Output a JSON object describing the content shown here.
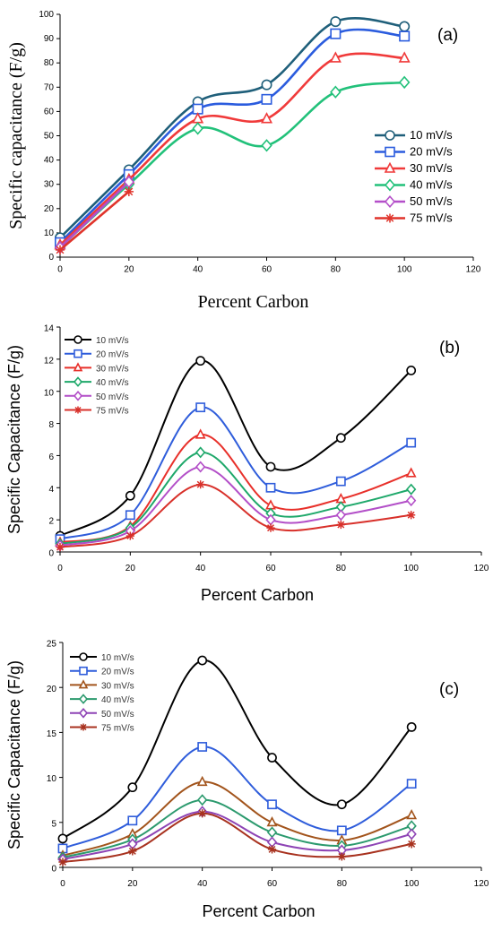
{
  "chart_data": [
    {
      "panel": "(a)",
      "type": "line",
      "xlabel": "Percent Carbon",
      "ylabel": "Specific capacitance (F/g)",
      "xlim": [
        0,
        120
      ],
      "ylim": [
        0,
        100
      ],
      "xticks": [
        0,
        20,
        40,
        60,
        80,
        100,
        120
      ],
      "yticks": [
        0,
        10,
        20,
        30,
        40,
        50,
        60,
        70,
        80,
        90,
        100
      ],
      "grid": false,
      "legend_position": "right-middle",
      "series": [
        {
          "name": "10 mV/s",
          "color": "#1f5f7a",
          "marker": "circle",
          "x": [
            0,
            20,
            40,
            60,
            80,
            100
          ],
          "y": [
            8,
            36,
            64,
            71,
            97,
            95
          ]
        },
        {
          "name": "20 mV/s",
          "color": "#2b5cde",
          "marker": "square",
          "x": [
            0,
            20,
            40,
            60,
            80,
            100
          ],
          "y": [
            6,
            34,
            61,
            65,
            92,
            91
          ]
        },
        {
          "name": "30 mV/s",
          "color": "#f03a3a",
          "marker": "triangle",
          "x": [
            0,
            20,
            40,
            60,
            80,
            100
          ],
          "y": [
            5,
            32,
            57,
            57,
            82,
            82
          ]
        },
        {
          "name": "40 mV/s",
          "color": "#22c17a",
          "marker": "diamond",
          "x": [
            0,
            20,
            40,
            60,
            80,
            100
          ],
          "y": [
            4,
            30,
            53,
            46,
            68,
            72
          ]
        },
        {
          "name": "50 mV/s",
          "color": "#b44fc9",
          "marker": "diamond",
          "x": [
            0,
            20
          ],
          "y": [
            4,
            31
          ]
        },
        {
          "name": "75 mV/s",
          "color": "#e0342b",
          "marker": "star",
          "x": [
            0,
            20
          ],
          "y": [
            3,
            27
          ]
        }
      ]
    },
    {
      "panel": "(b)",
      "type": "line",
      "xlabel": "Percent Carbon",
      "ylabel": "Specific Capacitance (F/g)",
      "xlim": [
        0,
        120
      ],
      "ylim": [
        0,
        14
      ],
      "xticks": [
        0,
        20,
        40,
        60,
        80,
        100,
        120
      ],
      "yticks": [
        0,
        2,
        4,
        6,
        8,
        10,
        12,
        14
      ],
      "grid": false,
      "legend_position": "top-left",
      "series": [
        {
          "name": "10 mV/s",
          "color": "#000000",
          "marker": "circle",
          "x": [
            0,
            20,
            40,
            60,
            80,
            100
          ],
          "y": [
            1.0,
            3.5,
            11.9,
            5.3,
            7.1,
            11.3
          ]
        },
        {
          "name": "20 mV/s",
          "color": "#2f5ddb",
          "marker": "square",
          "x": [
            0,
            20,
            40,
            60,
            80,
            100
          ],
          "y": [
            0.8,
            2.3,
            9.0,
            4.0,
            4.4,
            6.8
          ]
        },
        {
          "name": "30 mV/s",
          "color": "#e8302a",
          "marker": "triangle",
          "x": [
            0,
            20,
            40,
            60,
            80,
            100
          ],
          "y": [
            0.6,
            1.6,
            7.3,
            2.9,
            3.3,
            4.9
          ]
        },
        {
          "name": "40 mV/s",
          "color": "#1ea86a",
          "marker": "diamond",
          "x": [
            0,
            20,
            40,
            60,
            80,
            100
          ],
          "y": [
            0.5,
            1.5,
            6.2,
            2.4,
            2.8,
            3.9
          ]
        },
        {
          "name": "50 mV/s",
          "color": "#b34fc8",
          "marker": "diamond",
          "x": [
            0,
            20,
            40,
            60,
            80,
            100
          ],
          "y": [
            0.4,
            1.3,
            5.3,
            2.0,
            2.3,
            3.2
          ]
        },
        {
          "name": "75 mV/s",
          "color": "#d8302a",
          "marker": "star",
          "x": [
            0,
            20,
            40,
            60,
            80,
            100
          ],
          "y": [
            0.3,
            1.0,
            4.2,
            1.5,
            1.7,
            2.3
          ]
        }
      ]
    },
    {
      "panel": "(c)",
      "type": "line",
      "xlabel": "Percent Carbon",
      "ylabel": "Specific Capacitance (F/g)",
      "xlim": [
        0,
        120
      ],
      "ylim": [
        0,
        25
      ],
      "xticks": [
        0,
        20,
        40,
        60,
        80,
        100,
        120
      ],
      "yticks": [
        0,
        5,
        10,
        15,
        20,
        25
      ],
      "grid": false,
      "legend_position": "top-left",
      "series": [
        {
          "name": "10 mV/s",
          "color": "#000000",
          "marker": "circle",
          "x": [
            0,
            20,
            40,
            60,
            80,
            100
          ],
          "y": [
            3.2,
            8.9,
            23.0,
            12.2,
            7.0,
            15.6
          ]
        },
        {
          "name": "20 mV/s",
          "color": "#2f5ddb",
          "marker": "square",
          "x": [
            0,
            20,
            40,
            60,
            80,
            100
          ],
          "y": [
            2.1,
            5.2,
            13.4,
            7.0,
            4.1,
            9.3
          ]
        },
        {
          "name": "30 mV/s",
          "color": "#a2541c",
          "marker": "triangle",
          "x": [
            0,
            20,
            40,
            60,
            80,
            100
          ],
          "y": [
            1.3,
            3.7,
            9.5,
            5.0,
            3.0,
            5.8
          ]
        },
        {
          "name": "40 mV/s",
          "color": "#2c9a6e",
          "marker": "diamond",
          "x": [
            0,
            20,
            40,
            60,
            80,
            100
          ],
          "y": [
            1.1,
            3.1,
            7.5,
            3.9,
            2.4,
            4.6
          ]
        },
        {
          "name": "50 mV/s",
          "color": "#8e44b5",
          "marker": "diamond",
          "x": [
            0,
            20,
            40,
            60,
            80,
            100
          ],
          "y": [
            0.9,
            2.6,
            6.2,
            2.8,
            1.9,
            3.7
          ]
        },
        {
          "name": "75 mV/s",
          "color": "#a8321f",
          "marker": "star",
          "x": [
            0,
            20,
            40,
            60,
            80,
            100
          ],
          "y": [
            0.6,
            1.8,
            6.0,
            2.0,
            1.2,
            2.6
          ]
        }
      ]
    }
  ]
}
